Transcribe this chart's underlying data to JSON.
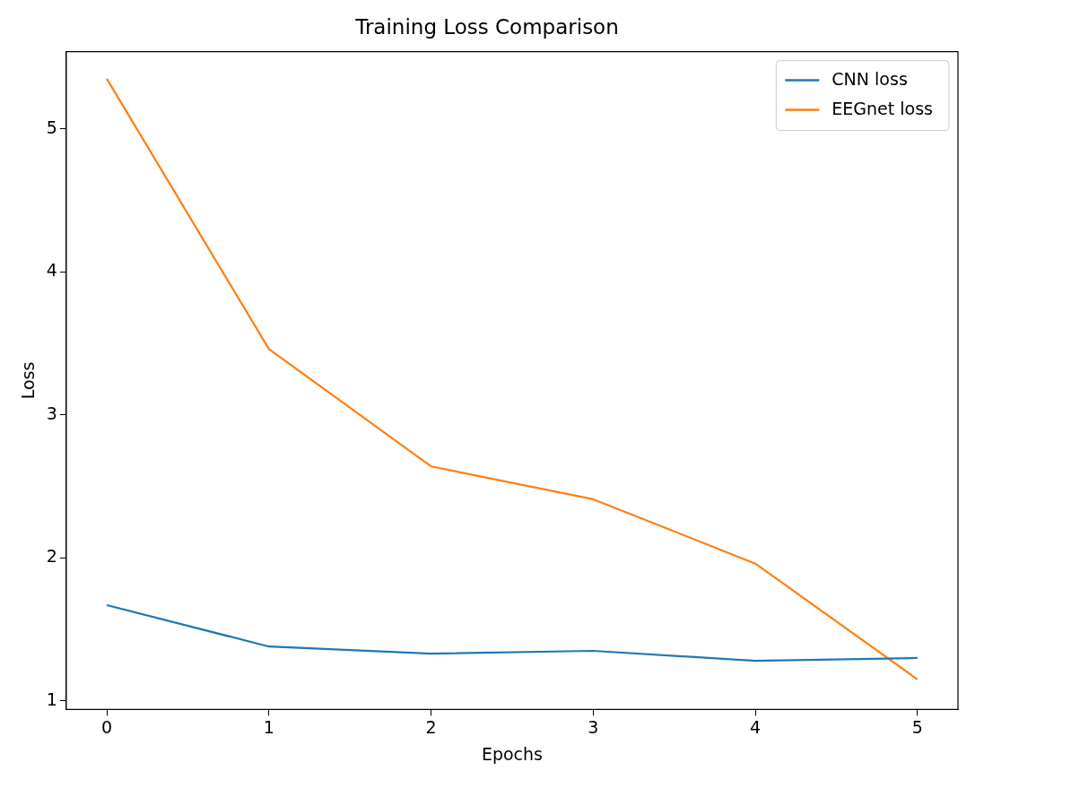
{
  "chart_data": {
    "type": "line",
    "title": "Training Loss Comparison",
    "xlabel": "Epochs",
    "ylabel": "Loss",
    "x": [
      0,
      1,
      2,
      3,
      4,
      5
    ],
    "series": [
      {
        "name": "CNN loss",
        "color": "#1f77b4",
        "values": [
          1.67,
          1.38,
          1.33,
          1.35,
          1.28,
          1.3
        ]
      },
      {
        "name": "EEGnet loss",
        "color": "#ff7f0e",
        "values": [
          5.35,
          3.46,
          2.64,
          2.41,
          1.96,
          1.15
        ]
      }
    ],
    "xlim": [
      -0.25,
      5.25
    ],
    "xticks": [
      0,
      1,
      2,
      3,
      4,
      5
    ],
    "ylim": [
      0.94,
      5.54
    ],
    "yticks": [
      1,
      2,
      3,
      4,
      5
    ],
    "grid": false,
    "legend": "top right",
    "marker": "none",
    "line_style": "solid"
  }
}
